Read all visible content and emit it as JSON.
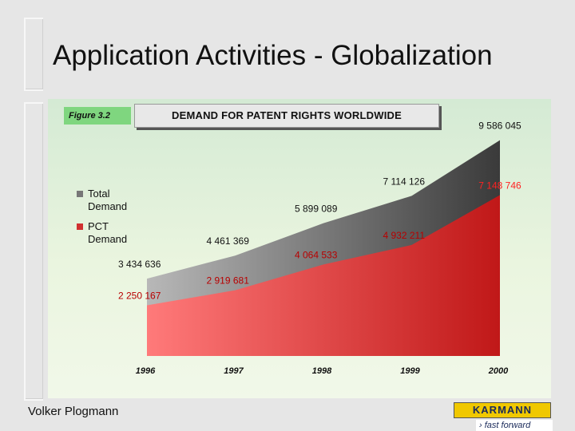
{
  "slide": {
    "title": "Application Activities - Globalization",
    "author": "Volker Plogmann"
  },
  "logo": {
    "name": "KARMANN",
    "tagline": "fast forward"
  },
  "chart_data": {
    "type": "area",
    "figure_label": "Figure 3.2",
    "title": "DEMAND FOR PATENT RIGHTS WORLDWIDE",
    "x": [
      "1996",
      "1997",
      "1998",
      "1999",
      "2000"
    ],
    "series": [
      {
        "name": "Total Demand",
        "values": [
          3434636,
          4461369,
          5899089,
          7114126,
          9586045
        ],
        "labels": [
          "3 434 636",
          "4 461 369",
          "5 899 089",
          "7 114 126",
          "9 586 045"
        ],
        "color": "#6e6e6e"
      },
      {
        "name": "PCT Demand",
        "values": [
          2250167,
          2919681,
          4064533,
          4932211,
          7148746
        ],
        "labels": [
          "2 250 167",
          "2 919 681",
          "4 064 533",
          "4 932 211",
          "7 148 746"
        ],
        "color": "#d23a3a"
      }
    ],
    "legend_position": "left",
    "ylim": [
      0,
      10000000
    ]
  }
}
